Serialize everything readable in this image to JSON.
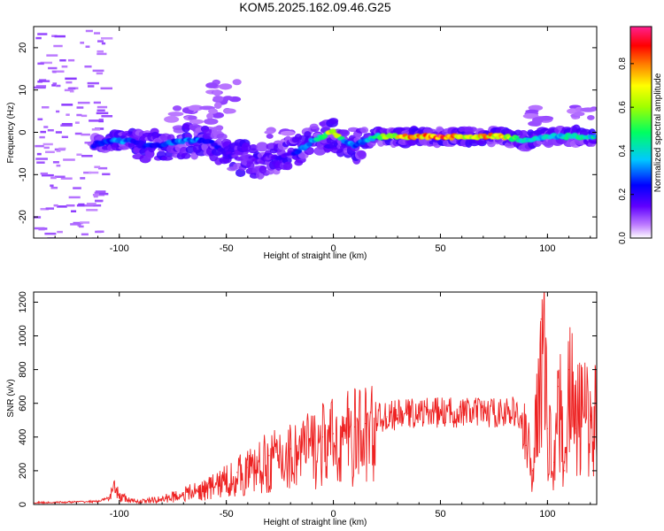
{
  "title": "KOM5.2025.162.09.46.G25",
  "chart_data": [
    {
      "type": "heatmap",
      "xlabel": "Height of straight line (km)",
      "ylabel": "Frequency (Hz)",
      "xlim": [
        -140,
        123
      ],
      "ylim": [
        -25,
        25
      ],
      "xticks": [
        -100,
        -50,
        0,
        50,
        100
      ],
      "yticks": [
        -20,
        -10,
        0,
        10,
        20
      ],
      "colorbar": {
        "label": "Normalized spectral amplitude",
        "range": [
          0,
          0.97
        ],
        "ticks": [
          0.0,
          0.2,
          0.4,
          0.6,
          0.8
        ],
        "tick_labels": [
          "0.0",
          "0.2",
          "0.4",
          "0.6",
          "0.8"
        ],
        "colors": [
          "#ffffff",
          "#8000ff",
          "#0000ff",
          "#00c8ff",
          "#00ff00",
          "#ffff00",
          "#ff8000",
          "#ff0000",
          "#ff00ff"
        ]
      },
      "ridge": {
        "x": [
          -112,
          -105,
          -100,
          -95,
          -90,
          -80,
          -70,
          -60,
          -55,
          -50,
          -45,
          -40,
          -35,
          -30,
          -25,
          -20,
          -15,
          -10,
          -5,
          0,
          5,
          10,
          15,
          20,
          30,
          40,
          50,
          60,
          70,
          80,
          85,
          90,
          95,
          100,
          105,
          110,
          115,
          120
        ],
        "y": [
          -3,
          -2,
          -2,
          -2,
          -3,
          -3,
          -2,
          -2,
          -3,
          -5,
          -6,
          -6,
          -7,
          -6,
          -6,
          -5,
          -4,
          -2,
          -1,
          0,
          -2,
          -3,
          -2,
          -1,
          -1,
          -1,
          -1,
          -1,
          -1,
          -1,
          -1.5,
          -2,
          -1.5,
          -1,
          -1,
          -1,
          -1,
          -1
        ],
        "amplitude": [
          0.25,
          0.3,
          0.35,
          0.3,
          0.25,
          0.3,
          0.35,
          0.3,
          0.25,
          0.2,
          0.15,
          0.15,
          0.15,
          0.15,
          0.2,
          0.2,
          0.3,
          0.35,
          0.5,
          0.8,
          0.4,
          0.3,
          0.35,
          0.5,
          0.75,
          0.85,
          0.95,
          0.7,
          0.8,
          0.75,
          0.55,
          0.4,
          0.45,
          0.4,
          0.4,
          0.45,
          0.45,
          0.45
        ]
      }
    },
    {
      "type": "line",
      "xlabel": "Height of straight line (km)",
      "ylabel": "SNR (v/v)",
      "xlim": [
        -140,
        123
      ],
      "ylim": [
        0,
        1260
      ],
      "xticks": [
        -100,
        -50,
        0,
        50,
        100
      ],
      "yticks": [
        0,
        200,
        400,
        600,
        800,
        1000,
        1200
      ],
      "color": "#ee2222",
      "series": [
        {
          "x": [
            -140,
            -130,
            -120,
            -110,
            -105,
            -102,
            -100,
            -95,
            -90,
            -80,
            -70,
            -60,
            -50,
            -45,
            -40,
            -35,
            -30,
            -25,
            -20,
            -15,
            -10,
            -5,
            0,
            5,
            10,
            15,
            20,
            25,
            30,
            35,
            40,
            45,
            50,
            55,
            60,
            65,
            70,
            75,
            80,
            85,
            88,
            90,
            93,
            95,
            97,
            100,
            103,
            105,
            108,
            110,
            113,
            115,
            120,
            123
          ],
          "values": [
            10,
            12,
            15,
            18,
            40,
            100,
            60,
            25,
            20,
            35,
            70,
            100,
            160,
            190,
            220,
            250,
            290,
            310,
            330,
            370,
            380,
            400,
            420,
            450,
            460,
            480,
            510,
            520,
            530,
            540,
            545,
            545,
            545,
            545,
            545,
            545,
            545,
            545,
            545,
            550,
            480,
            350,
            200,
            500,
            1100,
            450,
            250,
            700,
            200,
            800,
            450,
            520,
            500,
            500
          ]
        }
      ]
    }
  ]
}
